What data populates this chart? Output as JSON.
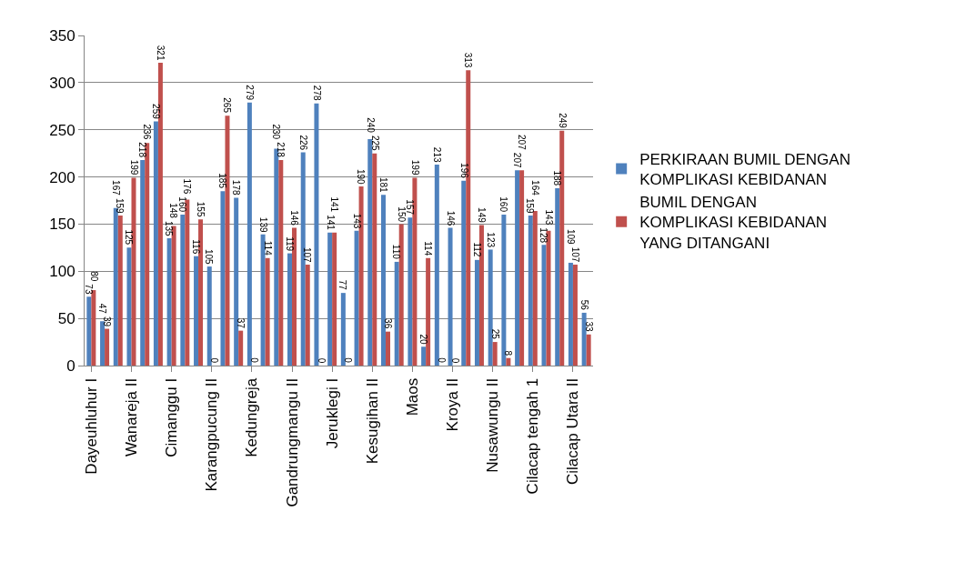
{
  "chart_data": {
    "type": "bar",
    "categories": [
      "Dayeuhluhur I",
      null,
      null,
      "Wanareja II",
      null,
      null,
      "Cimanggu I",
      null,
      null,
      "Karangpucung II",
      null,
      null,
      "Kedungreja",
      null,
      null,
      "Gandrungmangu II",
      null,
      null,
      "Jeruklegi I",
      null,
      null,
      "Kesugihan II",
      null,
      null,
      "Maos",
      null,
      null,
      "Kroya II",
      null,
      null,
      "Nusawungu II",
      null,
      null,
      "Cilacap tengah 1",
      null,
      null,
      "Cilacap Utara II",
      null
    ],
    "series": [
      {
        "name": "PERKIRAAN BUMIL DENGAN KOMPLIKASI KEBIDANAN",
        "color": "#4f81bd",
        "values": [
          73,
          47,
          167,
          125,
          218,
          259,
          135,
          160,
          116,
          105,
          185,
          178,
          279,
          139,
          230,
          119,
          226,
          278,
          141,
          77,
          143,
          240,
          181,
          110,
          157,
          20,
          213,
          146,
          196,
          112,
          123,
          160,
          207,
          159,
          128,
          188,
          109,
          56
        ]
      },
      {
        "name": "BUMIL DENGAN KOMPLIKASI KEBIDANAN YANG DITANGANI",
        "color": "#c0504d",
        "values": [
          80,
          39,
          159,
          199,
          236,
          321,
          148,
          176,
          155,
          0,
          265,
          37,
          0,
          114,
          218,
          146,
          107,
          0,
          141,
          0,
          190,
          225,
          36,
          150,
          199,
          114,
          0,
          0,
          313,
          149,
          25,
          8,
          207,
          164,
          143,
          249,
          107,
          33
        ]
      }
    ],
    "ylim": [
      0,
      350
    ],
    "yticks": [
      0,
      50,
      100,
      150,
      200,
      250,
      300,
      350
    ],
    "grid": "y",
    "legend": "right",
    "data_labels": true
  }
}
